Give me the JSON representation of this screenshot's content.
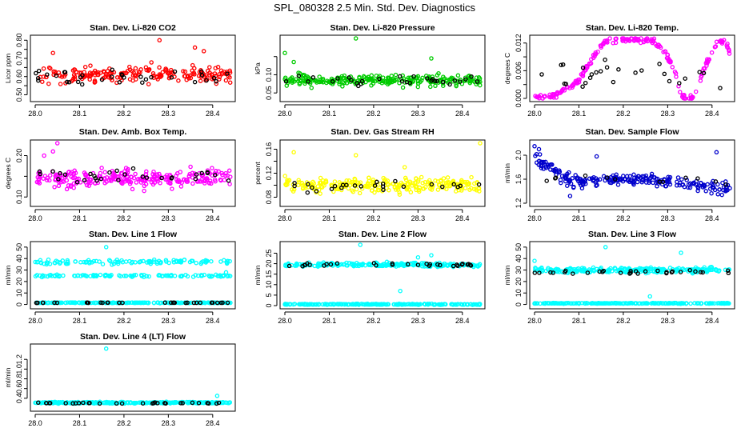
{
  "figure": {
    "title": "SPL_080328  2.5 Min. Std. Dev. Diagnostics"
  },
  "colors": {
    "highlight": "#000000"
  },
  "chart_data": [
    {
      "type": "scatter",
      "title": "Stan. Dev. Li-820 CO2",
      "ylabel": "Licor ppm",
      "xlim": [
        28.0,
        28.44
      ],
      "ylim": [
        0.48,
        0.81
      ],
      "xticks": [
        28.0,
        28.1,
        28.2,
        28.3,
        28.4
      ],
      "yticks": [
        0.5,
        0.55,
        0.6,
        0.65,
        0.7,
        0.75,
        0.8
      ],
      "yticklabels": [
        "0.50",
        "",
        "0.60",
        "",
        "0.70",
        "",
        "0.80"
      ],
      "color": "#ff0000",
      "series": [
        {
          "kind": "band",
          "n": 200,
          "y_mean": 0.61,
          "y_spread": 0.045,
          "y_min": 0.48,
          "y_max": 0.71,
          "seed": 11
        },
        {
          "kind": "highlight",
          "n": 34,
          "y_mean": 0.595,
          "y_spread": 0.04,
          "y_min": 0.5,
          "y_max": 0.7,
          "seed": 12
        },
        {
          "kind": "points",
          "x": [
            28.28,
            28.36,
            28.38,
            28.04
          ],
          "y": [
            0.8,
            0.76,
            0.74,
            0.73
          ]
        }
      ]
    },
    {
      "type": "scatter",
      "title": "Stan. Dev. Li-820 Pressure",
      "ylabel": "kPa",
      "xlim": [
        28.0,
        28.44
      ],
      "ylim": [
        0.035,
        0.2
      ],
      "xticks": [
        28.0,
        28.1,
        28.2,
        28.3,
        28.4
      ],
      "yticks": [
        0.05,
        0.1,
        0.15
      ],
      "yticklabels": [
        "0.05",
        "0.10",
        ""
      ],
      "color": "#00cc00",
      "series": [
        {
          "kind": "band",
          "n": 260,
          "y_mean": 0.085,
          "y_spread": 0.015,
          "y_min": 0.045,
          "y_max": 0.125,
          "seed": 21
        },
        {
          "kind": "highlight",
          "n": 30,
          "y_mean": 0.085,
          "y_spread": 0.012,
          "y_min": 0.06,
          "y_max": 0.115,
          "seed": 22
        },
        {
          "kind": "points",
          "x": [
            28.0,
            28.16,
            28.33,
            28.02
          ],
          "y": [
            0.16,
            0.2,
            0.145,
            0.135
          ]
        }
      ]
    },
    {
      "type": "scatter",
      "title": "Stan. Dev. Li-820 Temp.",
      "ylabel": "degrees C",
      "xlim": [
        28.0,
        28.44
      ],
      "ylim": [
        0.0,
        0.013
      ],
      "xticks": [
        28.0,
        28.1,
        28.2,
        28.3,
        28.4
      ],
      "yticks": [
        0.0,
        0.003,
        0.006,
        0.009,
        0.012
      ],
      "yticklabels": [
        "0.000",
        "",
        "0.006",
        "",
        "0.012"
      ],
      "color": "#ff00ff",
      "series": [
        {
          "kind": "curve",
          "n": 220,
          "seed": 31,
          "knots_x": [
            28.0,
            28.04,
            28.07,
            28.1,
            28.13,
            28.16,
            28.2,
            28.24,
            28.27,
            28.3,
            28.32,
            28.33,
            28.36,
            28.38,
            28.41,
            28.43,
            28.44
          ],
          "knots_y": [
            0.0003,
            0.0004,
            0.002,
            0.004,
            0.0085,
            0.0125,
            0.0128,
            0.0128,
            0.0125,
            0.009,
            0.005,
            0.0003,
            0.0003,
            0.006,
            0.012,
            0.0125,
            0.01
          ],
          "y_spread": 0.0006
        },
        {
          "kind": "highlight",
          "n": 26,
          "y_mean": 0.005,
          "y_spread": 0.004,
          "y_min": 0.0,
          "y_max": 0.012,
          "seed": 32
        }
      ]
    },
    {
      "type": "scatter",
      "title": "Stan. Dev. Amb. Box Temp.",
      "ylabel": "degrees C",
      "xlim": [
        28.0,
        28.44
      ],
      "ylim": [
        0.085,
        0.23
      ],
      "xticks": [
        28.0,
        28.1,
        28.2,
        28.3,
        28.4
      ],
      "yticks": [
        0.1,
        0.15,
        0.2
      ],
      "yticklabels": [
        "0.10",
        "",
        "0.20"
      ],
      "color": "#ff00ff",
      "series": [
        {
          "kind": "band",
          "n": 260,
          "y_mean": 0.145,
          "y_spread": 0.02,
          "y_min": 0.09,
          "y_max": 0.2,
          "seed": 41
        },
        {
          "kind": "highlight",
          "n": 30,
          "y_mean": 0.15,
          "y_spread": 0.015,
          "y_min": 0.11,
          "y_max": 0.18,
          "seed": 42
        },
        {
          "kind": "points",
          "x": [
            28.05,
            28.04,
            28.02
          ],
          "y": [
            0.23,
            0.21,
            0.2
          ]
        }
      ]
    },
    {
      "type": "scatter",
      "title": "Stan. Dev. Gas Stream RH",
      "ylabel": "percent",
      "xlim": [
        28.0,
        28.44
      ],
      "ylim": [
        0.07,
        0.17
      ],
      "xticks": [
        28.0,
        28.1,
        28.2,
        28.3,
        28.4
      ],
      "yticks": [
        0.08,
        0.1,
        0.12,
        0.14,
        0.16
      ],
      "yticklabels": [
        "0.08",
        "",
        "0.12",
        "",
        "0.16"
      ],
      "color": "#ffff00",
      "series": [
        {
          "kind": "band",
          "n": 260,
          "y_mean": 0.1,
          "y_spread": 0.012,
          "y_min": 0.075,
          "y_max": 0.14,
          "seed": 51
        },
        {
          "kind": "highlight",
          "n": 26,
          "y_mean": 0.098,
          "y_spread": 0.009,
          "y_min": 0.08,
          "y_max": 0.115,
          "seed": 52
        },
        {
          "kind": "points",
          "x": [
            28.44,
            28.02,
            28.16,
            28.27
          ],
          "y": [
            0.17,
            0.155,
            0.15,
            0.13
          ]
        }
      ]
    },
    {
      "type": "scatter",
      "title": "Stan. Dev. Sample Flow",
      "ylabel": "ml/min",
      "xlim": [
        28.0,
        28.44
      ],
      "ylim": [
        1.2,
        2.2
      ],
      "xticks": [
        28.0,
        28.1,
        28.2,
        28.3,
        28.4
      ],
      "yticks": [
        1.2,
        1.6,
        2.0
      ],
      "yticklabels": [
        "1.2",
        "1.6",
        "2.0"
      ],
      "color": "#0000cc",
      "series": [
        {
          "kind": "curve",
          "n": 240,
          "seed": 61,
          "knots_x": [
            28.0,
            28.03,
            28.06,
            28.1,
            28.2,
            28.3,
            28.35,
            28.44
          ],
          "knots_y": [
            1.95,
            1.8,
            1.65,
            1.55,
            1.6,
            1.58,
            1.48,
            1.45
          ],
          "y_spread": 0.1
        },
        {
          "kind": "highlight",
          "n": 12,
          "y_mean": 1.6,
          "y_spread": 0.08,
          "y_min": 1.45,
          "y_max": 1.8,
          "seed": 62
        },
        {
          "kind": "points",
          "x": [
            28.0,
            28.01,
            28.14,
            28.41,
            28.08
          ],
          "y": [
            2.15,
            2.1,
            1.98,
            2.05,
            1.32
          ]
        }
      ]
    },
    {
      "type": "scatter",
      "title": "Stan. Dev. Line 1 Flow",
      "ylabel": "ml/min",
      "xlim": [
        28.0,
        28.44
      ],
      "ylim": [
        -1,
        52
      ],
      "xticks": [
        28.0,
        28.1,
        28.2,
        28.3,
        28.4
      ],
      "yticks": [
        0,
        10,
        20,
        30,
        40,
        50
      ],
      "yticklabels": [
        "0",
        "10",
        "20",
        "30",
        "40",
        "50"
      ],
      "color": "#00ffff",
      "series": [
        {
          "kind": "band",
          "n": 110,
          "y_mean": 37,
          "y_spread": 2,
          "y_min": 30,
          "y_max": 45,
          "seed": 71
        },
        {
          "kind": "band",
          "n": 110,
          "y_mean": 25,
          "y_spread": 1,
          "y_min": 21,
          "y_max": 28,
          "seed": 72
        },
        {
          "kind": "band",
          "n": 220,
          "y_mean": 1.5,
          "y_spread": 0.3,
          "y_min": 0.8,
          "y_max": 2.2,
          "seed": 73
        },
        {
          "kind": "highlight",
          "n": 32,
          "y_mean": 1.5,
          "y_spread": 0.2,
          "y_min": 1.0,
          "y_max": 2.0,
          "seed": 74
        },
        {
          "kind": "points",
          "x": [
            28.16,
            28.43
          ],
          "y": [
            50,
            28
          ]
        }
      ]
    },
    {
      "type": "scatter",
      "title": "Stan. Dev. Line 2 Flow",
      "ylabel": "ml/min",
      "xlim": [
        28.0,
        28.44
      ],
      "ylim": [
        0,
        29
      ],
      "xticks": [
        28.0,
        28.1,
        28.2,
        28.3,
        28.4
      ],
      "yticks": [
        0,
        5,
        10,
        15,
        20,
        25
      ],
      "yticklabels": [
        "0",
        "5",
        "10",
        "15",
        "20",
        "25"
      ],
      "color": "#00ffff",
      "series": [
        {
          "kind": "band",
          "n": 240,
          "y_mean": 19.5,
          "y_spread": 1.0,
          "y_min": 16.5,
          "y_max": 22,
          "seed": 81
        },
        {
          "kind": "band",
          "n": 220,
          "y_mean": 0.6,
          "y_spread": 0.2,
          "y_min": 0.2,
          "y_max": 1.0,
          "seed": 82
        },
        {
          "kind": "highlight",
          "n": 30,
          "y_mean": 19.5,
          "y_spread": 0.8,
          "y_min": 17.5,
          "y_max": 21,
          "seed": 83
        },
        {
          "kind": "points",
          "x": [
            28.17,
            28.33,
            28.3,
            28.26
          ],
          "y": [
            29,
            24,
            23,
            7
          ]
        }
      ]
    },
    {
      "type": "scatter",
      "title": "Stan. Dev. Line 3 Flow",
      "ylabel": "ml/min",
      "xlim": [
        28.0,
        28.44
      ],
      "ylim": [
        -1,
        52
      ],
      "xticks": [
        28.0,
        28.1,
        28.2,
        28.3,
        28.4
      ],
      "yticks": [
        0,
        10,
        20,
        30,
        40,
        50
      ],
      "yticklabels": [
        "0",
        "10",
        "20",
        "30",
        "40",
        "50"
      ],
      "color": "#00ffff",
      "series": [
        {
          "kind": "band",
          "n": 240,
          "y_mean": 30,
          "y_spread": 2.2,
          "y_min": 25,
          "y_max": 36,
          "seed": 91
        },
        {
          "kind": "band",
          "n": 220,
          "y_mean": 1.0,
          "y_spread": 0.3,
          "y_min": 0.4,
          "y_max": 1.6,
          "seed": 92
        },
        {
          "kind": "highlight",
          "n": 30,
          "y_mean": 28,
          "y_spread": 1.5,
          "y_min": 24,
          "y_max": 31,
          "seed": 93
        },
        {
          "kind": "points",
          "x": [
            28.0,
            28.16,
            28.33,
            28.26
          ],
          "y": [
            38,
            50,
            45,
            7
          ]
        }
      ]
    },
    {
      "type": "scatter",
      "title": "Stan. Dev. Line 4 (LT) Flow",
      "ylabel": "ml/min",
      "xlim": [
        28.0,
        28.44
      ],
      "ylim": [
        0.2,
        1.45
      ],
      "xticks": [
        28.0,
        28.1,
        28.2,
        28.3,
        28.4
      ],
      "yticks": [
        0.4,
        0.6,
        0.8,
        1.0,
        1.2
      ],
      "yticklabels": [
        "0.4",
        "0.6",
        "0.8",
        "1.0",
        "1.2"
      ],
      "color": "#00ffff",
      "series": [
        {
          "kind": "band",
          "n": 300,
          "y_mean": 0.31,
          "y_spread": 0.015,
          "y_min": 0.27,
          "y_max": 0.36,
          "seed": 101
        },
        {
          "kind": "highlight",
          "n": 30,
          "y_mean": 0.3,
          "y_spread": 0.01,
          "y_min": 0.27,
          "y_max": 0.33,
          "seed": 102
        },
        {
          "kind": "points",
          "x": [
            28.16,
            28.41
          ],
          "y": [
            1.42,
            0.45
          ]
        }
      ]
    }
  ]
}
